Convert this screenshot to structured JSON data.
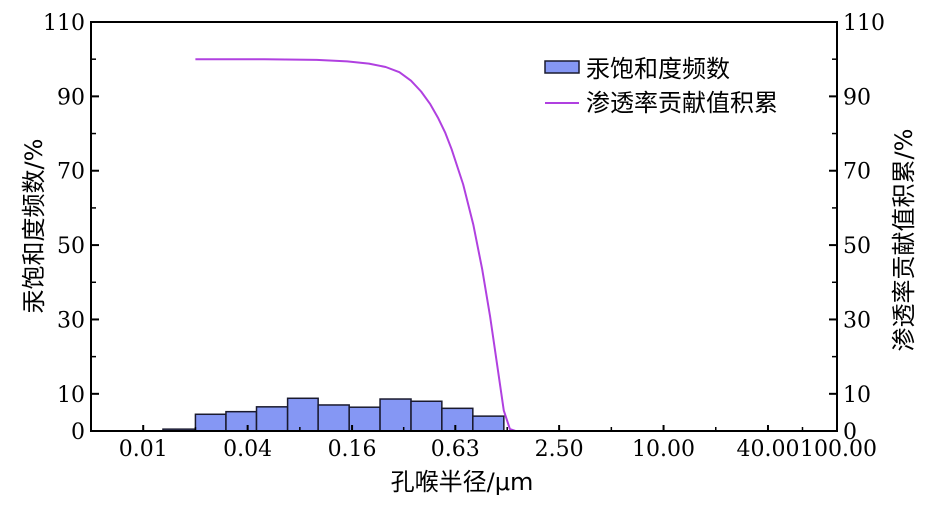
{
  "chart_data": {
    "type": "bar",
    "x_axis": {
      "label": "孔喉半径/μm",
      "scale": "log",
      "range": [
        0.005,
        100
      ],
      "tick_values": [
        0.01,
        0.04,
        0.16,
        0.63,
        2.5,
        10,
        40,
        100
      ],
      "tick_labels": [
        "0.01",
        "0.04",
        "0.16",
        "0.63",
        "2.50",
        "10.00",
        "40.00",
        "100.00"
      ]
    },
    "y_axis_left": {
      "label": "汞饱和度频数/%",
      "range": [
        0,
        110
      ],
      "tick_values": [
        0,
        10,
        30,
        50,
        70,
        90,
        110
      ],
      "tick_labels": [
        "0",
        "10",
        "30",
        "50",
        "70",
        "90",
        "110"
      ]
    },
    "y_axis_right": {
      "label": "渗透率贡献值积累/%",
      "range": [
        0,
        110
      ],
      "tick_values": [
        0,
        10,
        30,
        50,
        70,
        90,
        110
      ],
      "tick_labels": [
        "0",
        "10",
        "30",
        "50",
        "70",
        "90",
        "110"
      ]
    },
    "legend": {
      "position": "top-right",
      "entries": [
        "汞饱和度频数",
        "渗透率贡献值积累"
      ]
    },
    "series": [
      {
        "name": "汞饱和度频数",
        "kind": "histogram",
        "color": "#8597f4",
        "edge_color": "#1a1a2e",
        "bins": [
          {
            "x0": 0.013,
            "x1": 0.02,
            "value": 0.5
          },
          {
            "x0": 0.02,
            "x1": 0.03,
            "value": 4.5
          },
          {
            "x0": 0.03,
            "x1": 0.045,
            "value": 5.2
          },
          {
            "x0": 0.045,
            "x1": 0.068,
            "value": 6.5
          },
          {
            "x0": 0.068,
            "x1": 0.102,
            "value": 8.8
          },
          {
            "x0": 0.102,
            "x1": 0.154,
            "value": 7.0
          },
          {
            "x0": 0.154,
            "x1": 0.232,
            "value": 6.4
          },
          {
            "x0": 0.232,
            "x1": 0.35,
            "value": 8.6
          },
          {
            "x0": 0.35,
            "x1": 0.527,
            "value": 8.0
          },
          {
            "x0": 0.527,
            "x1": 0.795,
            "value": 6.1
          },
          {
            "x0": 0.795,
            "x1": 1.2,
            "value": 4.0
          }
        ]
      },
      {
        "name": "渗透率贡献值积累",
        "kind": "line",
        "color": "#b040e0",
        "x": [
          0.02,
          0.05,
          0.1,
          0.15,
          0.2,
          0.25,
          0.3,
          0.35,
          0.4,
          0.45,
          0.5,
          0.55,
          0.6,
          0.7,
          0.8,
          0.9,
          1.0,
          1.1,
          1.2,
          1.3,
          1.4
        ],
        "y": [
          100,
          100,
          99.8,
          99.4,
          98.8,
          97.9,
          96.5,
          94.2,
          91.3,
          88.0,
          84.3,
          80.3,
          75.8,
          66.3,
          55.5,
          43.5,
          30.8,
          17.5,
          5.5,
          0.5,
          0
        ]
      }
    ]
  }
}
